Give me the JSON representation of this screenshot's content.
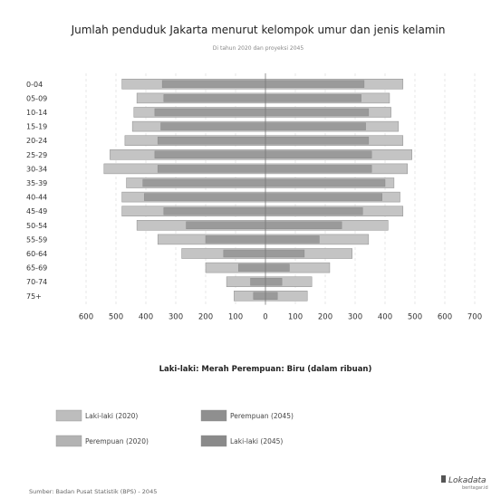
{
  "chart_data": {
    "type": "bar",
    "orientation": "horizontal",
    "title": "Jumlah penduduk Jakarta menurut kelompok umur dan jenis kelamin",
    "subtitle": "Di tahun 2020 dan proyeksi 2045",
    "categories": [
      "0-04",
      "05-09",
      "10-14",
      "15-19",
      "20-24",
      "25-29",
      "30-34",
      "35-39",
      "40-44",
      "45-49",
      "50-54",
      "55-59",
      "60-64",
      "65-69",
      "70-74",
      "75+"
    ],
    "series": [
      {
        "name": "Laki-laki (2020)",
        "side": "left",
        "layer": "inner",
        "color": "#9a9a9a",
        "values": [
          345,
          340,
          370,
          350,
          360,
          370,
          360,
          410,
          405,
          340,
          265,
          200,
          140,
          90,
          50,
          40
        ]
      },
      {
        "name": "Perempuan (2020)",
        "side": "right",
        "layer": "inner",
        "color": "#9a9a9a",
        "values": [
          330,
          320,
          345,
          335,
          345,
          355,
          355,
          400,
          390,
          325,
          255,
          180,
          130,
          80,
          55,
          40
        ]
      },
      {
        "name": "Laki-laki (2045)",
        "side": "left",
        "layer": "outer",
        "color": "#c4c4c4",
        "values": [
          480,
          430,
          440,
          445,
          470,
          520,
          540,
          465,
          480,
          480,
          430,
          360,
          280,
          200,
          130,
          105
        ]
      },
      {
        "name": "Perempuan (2045)",
        "side": "right",
        "layer": "outer",
        "color": "#c4c4c4",
        "values": [
          460,
          415,
          420,
          445,
          460,
          490,
          475,
          430,
          450,
          460,
          410,
          345,
          290,
          215,
          155,
          140
        ]
      }
    ],
    "xticks": [
      "600",
      "500",
      "400",
      "300",
      "200",
      "100",
      "0",
      "100",
      "200",
      "300",
      "400",
      "500",
      "600",
      "700"
    ],
    "xlim": [
      -600,
      700
    ],
    "xlabel": "Laki-laki: Merah   Perempuan: Biru (dalam ribuan)",
    "grid": true,
    "legend": {
      "placement": "bottom",
      "items": [
        {
          "label": "Laki-laki (2020)",
          "color": "#bdbdbd"
        },
        {
          "label": "Perempuan (2045)",
          "color": "#8f8f8f"
        },
        {
          "label": "Perempuan (2020)",
          "color": "#b3b3b3"
        },
        {
          "label": "Laki-laki (2045)",
          "color": "#8a8a8a"
        }
      ]
    }
  },
  "source": "Sumber: Badan Pusat Statistik (BPS) - 2045",
  "brand": {
    "name": "Lokadata",
    "tagline": "beritagar.id"
  }
}
